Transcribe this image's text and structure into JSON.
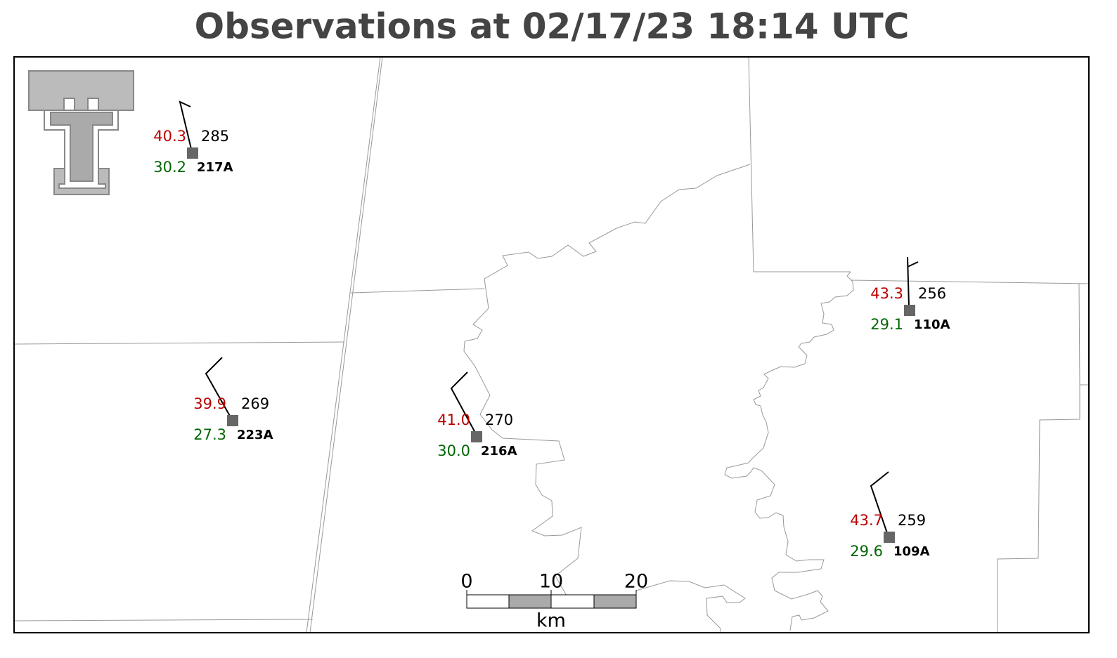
{
  "title": "Observations at 02/17/23 18:14 UTC",
  "stations": [
    {
      "id": "217A",
      "temperature": "40.3",
      "dewpoint": "30.2",
      "value": "285"
    },
    {
      "id": "223A",
      "temperature": "39.9",
      "dewpoint": "27.3",
      "value": "269"
    },
    {
      "id": "216A",
      "temperature": "41.0",
      "dewpoint": "30.0",
      "value": "270"
    },
    {
      "id": "110A",
      "temperature": "43.3",
      "dewpoint": "29.1",
      "value": "256"
    },
    {
      "id": "109A",
      "temperature": "43.7",
      "dewpoint": "29.6",
      "value": "259"
    }
  ],
  "scale_bar": {
    "labels": [
      "0",
      "10",
      "20"
    ],
    "unit": "km"
  }
}
